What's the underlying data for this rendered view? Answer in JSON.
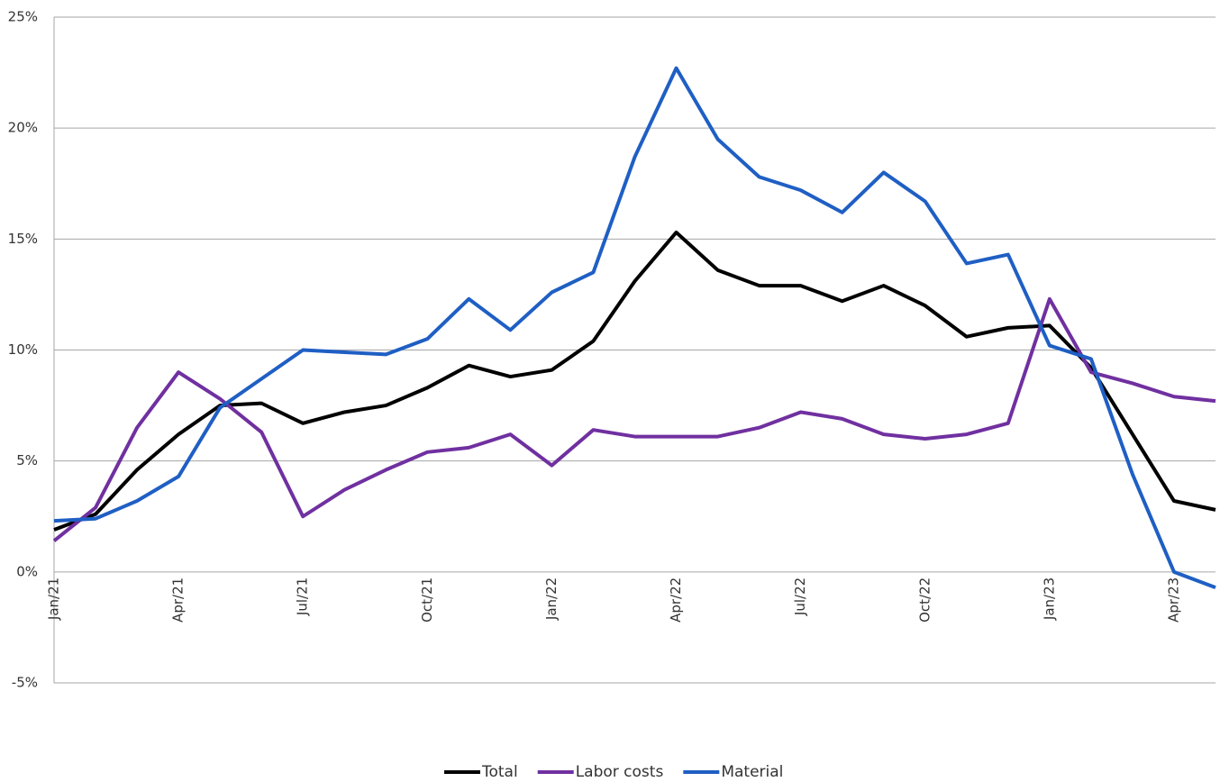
{
  "chart_data": {
    "type": "line",
    "categories": [
      "Jan/21",
      null,
      null,
      "Apr/21",
      null,
      null,
      "Jul/21",
      null,
      null,
      "Oct/21",
      null,
      null,
      "Jan/22",
      null,
      null,
      "Apr/22",
      null,
      null,
      "Jul/22",
      null,
      null,
      "Oct/22",
      null,
      null,
      "Jan/23",
      null,
      null,
      "Apr/23",
      null
    ],
    "series": [
      {
        "name": "Total",
        "color": "#000000",
        "values": [
          1.9,
          2.6,
          4.6,
          6.2,
          7.5,
          7.6,
          6.7,
          7.2,
          7.5,
          8.3,
          9.3,
          8.8,
          9.1,
          10.4,
          13.1,
          15.3,
          13.6,
          12.9,
          12.9,
          12.2,
          12.9,
          12.0,
          10.6,
          11.0,
          11.1,
          9.2,
          6.2,
          3.2,
          2.8
        ]
      },
      {
        "name": "Labor costs",
        "color": "#7030a0",
        "values": [
          1.4,
          2.9,
          6.5,
          9.0,
          7.8,
          6.3,
          2.5,
          3.7,
          4.6,
          5.4,
          5.6,
          6.2,
          4.8,
          6.4,
          6.1,
          6.1,
          6.1,
          6.5,
          7.2,
          6.9,
          6.2,
          6.0,
          6.2,
          6.7,
          12.3,
          9.0,
          8.5,
          7.9,
          7.7
        ]
      },
      {
        "name": "Material",
        "color": "#1f5fc4",
        "values": [
          2.3,
          2.4,
          3.2,
          4.3,
          7.4,
          8.7,
          10.0,
          9.9,
          9.8,
          10.5,
          12.3,
          10.9,
          12.6,
          13.5,
          18.7,
          22.7,
          19.5,
          17.8,
          17.2,
          16.2,
          18.0,
          16.7,
          13.9,
          14.3,
          10.2,
          9.6,
          4.4,
          0.0,
          -0.7
        ]
      }
    ],
    "ylim": [
      -5,
      25
    ],
    "yticks": [
      {
        "value": -5,
        "label": "-5%"
      },
      {
        "value": 0,
        "label": "0%"
      },
      {
        "value": 5,
        "label": "5%"
      },
      {
        "value": 10,
        "label": "10%"
      },
      {
        "value": 15,
        "label": "15%"
      },
      {
        "value": 20,
        "label": "20%"
      },
      {
        "value": 25,
        "label": "25%"
      }
    ],
    "grid": true,
    "legend": "bottom"
  }
}
